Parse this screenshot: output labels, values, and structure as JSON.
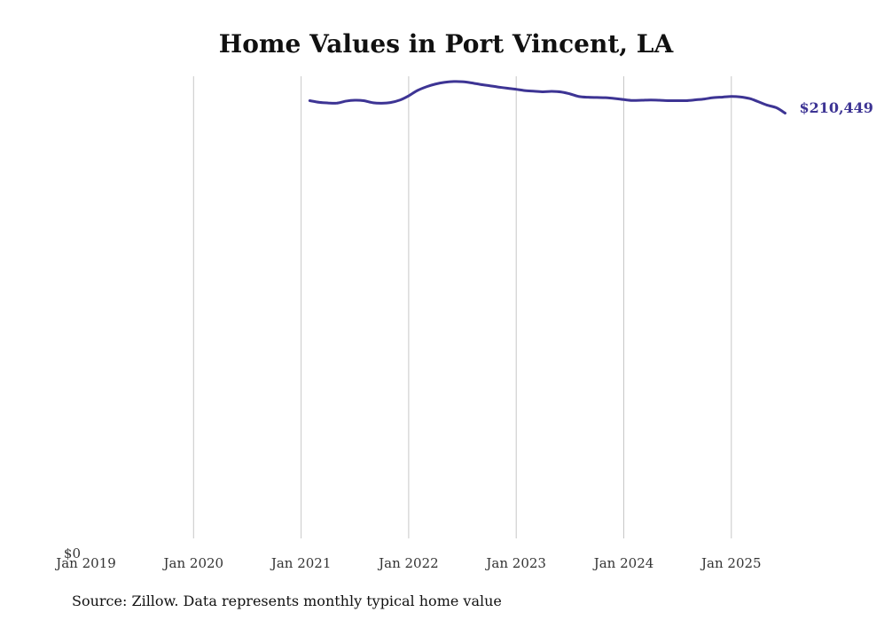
{
  "chart_data": {
    "type": "line",
    "title": "Home Values in Port Vincent, LA",
    "xlabel": "",
    "ylabel": "",
    "x_tick_labels": [
      "Jan 2019",
      "Jan 2020",
      "Jan 2021",
      "Jan 2022",
      "Jan 2023",
      "Jan 2024",
      "Jan 2025"
    ],
    "y_tick_labels": [
      "$0"
    ],
    "xlim": [
      2019.0,
      2025.9
    ],
    "ylim": [
      0,
      228000
    ],
    "grid": "vertical",
    "line_color": "#3d3494",
    "series": [
      {
        "name": "Typical home value",
        "x": [
          2021.08,
          2021.17,
          2021.25,
          2021.33,
          2021.42,
          2021.5,
          2021.58,
          2021.67,
          2021.75,
          2021.83,
          2021.92,
          2022.0,
          2022.08,
          2022.17,
          2022.25,
          2022.33,
          2022.42,
          2022.5,
          2022.58,
          2022.67,
          2022.75,
          2022.83,
          2022.92,
          2023.0,
          2023.08,
          2023.17,
          2023.25,
          2023.33,
          2023.42,
          2023.5,
          2023.58,
          2023.67,
          2023.75,
          2023.83,
          2023.92,
          2024.0,
          2024.08,
          2024.17,
          2024.25,
          2024.33,
          2024.42,
          2024.5,
          2024.58,
          2024.67,
          2024.75,
          2024.83,
          2024.92,
          2025.0,
          2025.08,
          2025.17,
          2025.25,
          2025.33,
          2025.42,
          2025.5
        ],
        "values": [
          216400,
          215600,
          215300,
          215200,
          216200,
          216600,
          216400,
          215400,
          215200,
          215500,
          216700,
          218700,
          221200,
          223100,
          224300,
          225100,
          225500,
          225400,
          224900,
          224100,
          223500,
          222900,
          222300,
          221800,
          221200,
          220900,
          220600,
          220800,
          220500,
          219600,
          218400,
          218000,
          217900,
          217800,
          217400,
          216900,
          216500,
          216600,
          216700,
          216600,
          216400,
          216400,
          216400,
          216800,
          217200,
          217800,
          218100,
          218400,
          218200,
          217400,
          215900,
          214300,
          213000,
          210449
        ]
      }
    ],
    "end_label": "$210,449"
  },
  "source_text": "Source: Zillow. Data represents monthly typical home value"
}
